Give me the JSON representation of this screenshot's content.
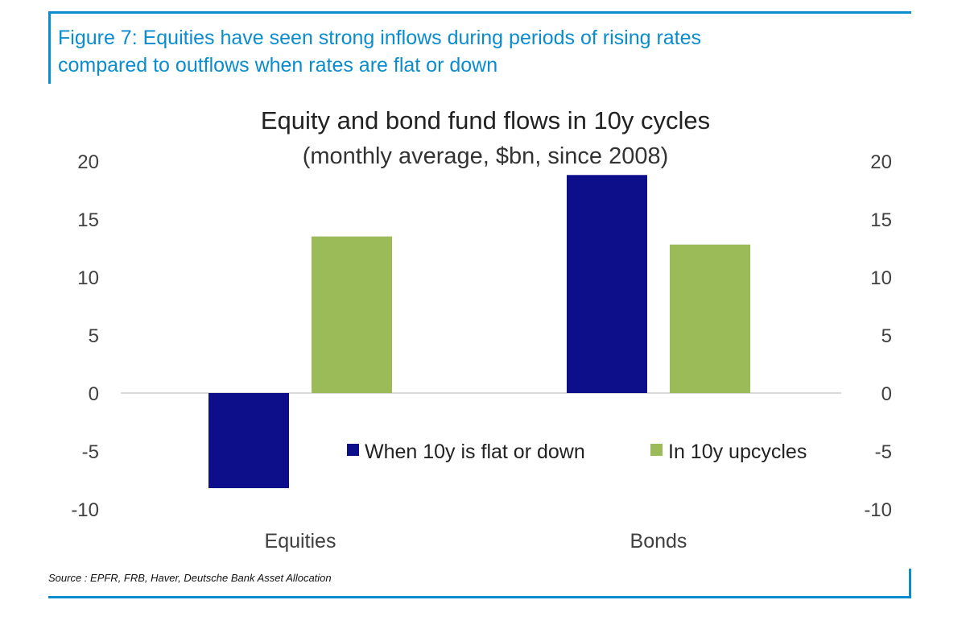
{
  "figure": {
    "title_line1": "Figure 7: Equities have seen strong inflows during periods of rising rates",
    "title_line2": "compared to outflows when rates are flat or down",
    "source": "Source : EPFR, FRB, Haver, Deutsche Bank Asset Allocation"
  },
  "colors": {
    "accent": "#0a8ccf",
    "series1": "#0d0e8a",
    "series2": "#9bbb59",
    "text": "#404040",
    "zero_line": "#d9d9d9"
  },
  "chart_data": {
    "type": "bar",
    "title": "Equity and bond fund flows in 10y cycles",
    "subtitle": "(monthly average, $bn, since 2008)",
    "categories": [
      "Equities",
      "Bonds"
    ],
    "series": [
      {
        "name": "When 10y is flat or down",
        "values": [
          -8.2,
          18.8
        ]
      },
      {
        "name": "In 10y upcycles",
        "values": [
          13.5,
          12.8
        ]
      }
    ],
    "ylim": [
      -10,
      20
    ],
    "yticks": [
      20,
      15,
      10,
      5,
      0,
      -5,
      -10
    ],
    "secondary_axis": true,
    "legend_position": "lower-right",
    "grid": false
  }
}
